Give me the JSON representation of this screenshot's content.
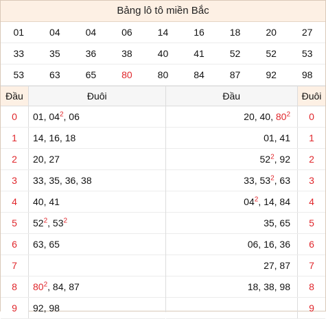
{
  "title": "Bảng lô tô miền Bắc",
  "numbers": [
    [
      "01",
      "04",
      "04",
      "06",
      "14",
      "16",
      "18",
      "20",
      "27"
    ],
    [
      "33",
      "35",
      "36",
      "38",
      "40",
      "41",
      "52",
      "52",
      "53"
    ],
    [
      "53",
      "63",
      "65",
      "80",
      "80",
      "84",
      "87",
      "92",
      "98"
    ]
  ],
  "highlight": {
    "row": 2,
    "col": 3
  },
  "headers": {
    "dau": "Đầu",
    "duoi": "Đuôi"
  },
  "left_rows": [
    {
      "k": "0",
      "v": [
        {
          "t": "01, 04"
        },
        {
          "s": "2"
        },
        {
          "t": ", 06"
        }
      ]
    },
    {
      "k": "1",
      "v": [
        {
          "t": "14, 16, 18"
        }
      ]
    },
    {
      "k": "2",
      "v": [
        {
          "t": "20, 27"
        }
      ]
    },
    {
      "k": "3",
      "v": [
        {
          "t": "33, 35, 36, 38"
        }
      ]
    },
    {
      "k": "4",
      "v": [
        {
          "t": "40, 41"
        }
      ]
    },
    {
      "k": "5",
      "v": [
        {
          "t": "52"
        },
        {
          "s": "2"
        },
        {
          "t": ", 53"
        },
        {
          "s": "2"
        }
      ]
    },
    {
      "k": "6",
      "v": [
        {
          "t": "63, 65"
        }
      ]
    },
    {
      "k": "7",
      "v": []
    },
    {
      "k": "8",
      "v": [
        {
          "r": "80"
        },
        {
          "s": "2"
        },
        {
          "t": ", 84, 87"
        }
      ]
    },
    {
      "k": "9",
      "v": [
        {
          "t": "92, 98"
        }
      ]
    }
  ],
  "right_rows": [
    {
      "k": "0",
      "v": [
        {
          "t": "20, 40, "
        },
        {
          "r": "80"
        },
        {
          "s": "2"
        }
      ]
    },
    {
      "k": "1",
      "v": [
        {
          "t": "01, 41"
        }
      ]
    },
    {
      "k": "2",
      "v": [
        {
          "t": "52"
        },
        {
          "s": "2"
        },
        {
          "t": ", 92"
        }
      ]
    },
    {
      "k": "3",
      "v": [
        {
          "t": "33, 53"
        },
        {
          "s": "2"
        },
        {
          "t": ", 63"
        }
      ]
    },
    {
      "k": "4",
      "v": [
        {
          "t": "04"
        },
        {
          "s": "2"
        },
        {
          "t": ", 14, 84"
        }
      ]
    },
    {
      "k": "5",
      "v": [
        {
          "t": "35, 65"
        }
      ]
    },
    {
      "k": "6",
      "v": [
        {
          "t": "06, 16, 36"
        }
      ]
    },
    {
      "k": "7",
      "v": [
        {
          "t": "27, 87"
        }
      ]
    },
    {
      "k": "8",
      "v": [
        {
          "t": "18, 38, 98"
        }
      ]
    },
    {
      "k": "9",
      "v": []
    }
  ]
}
